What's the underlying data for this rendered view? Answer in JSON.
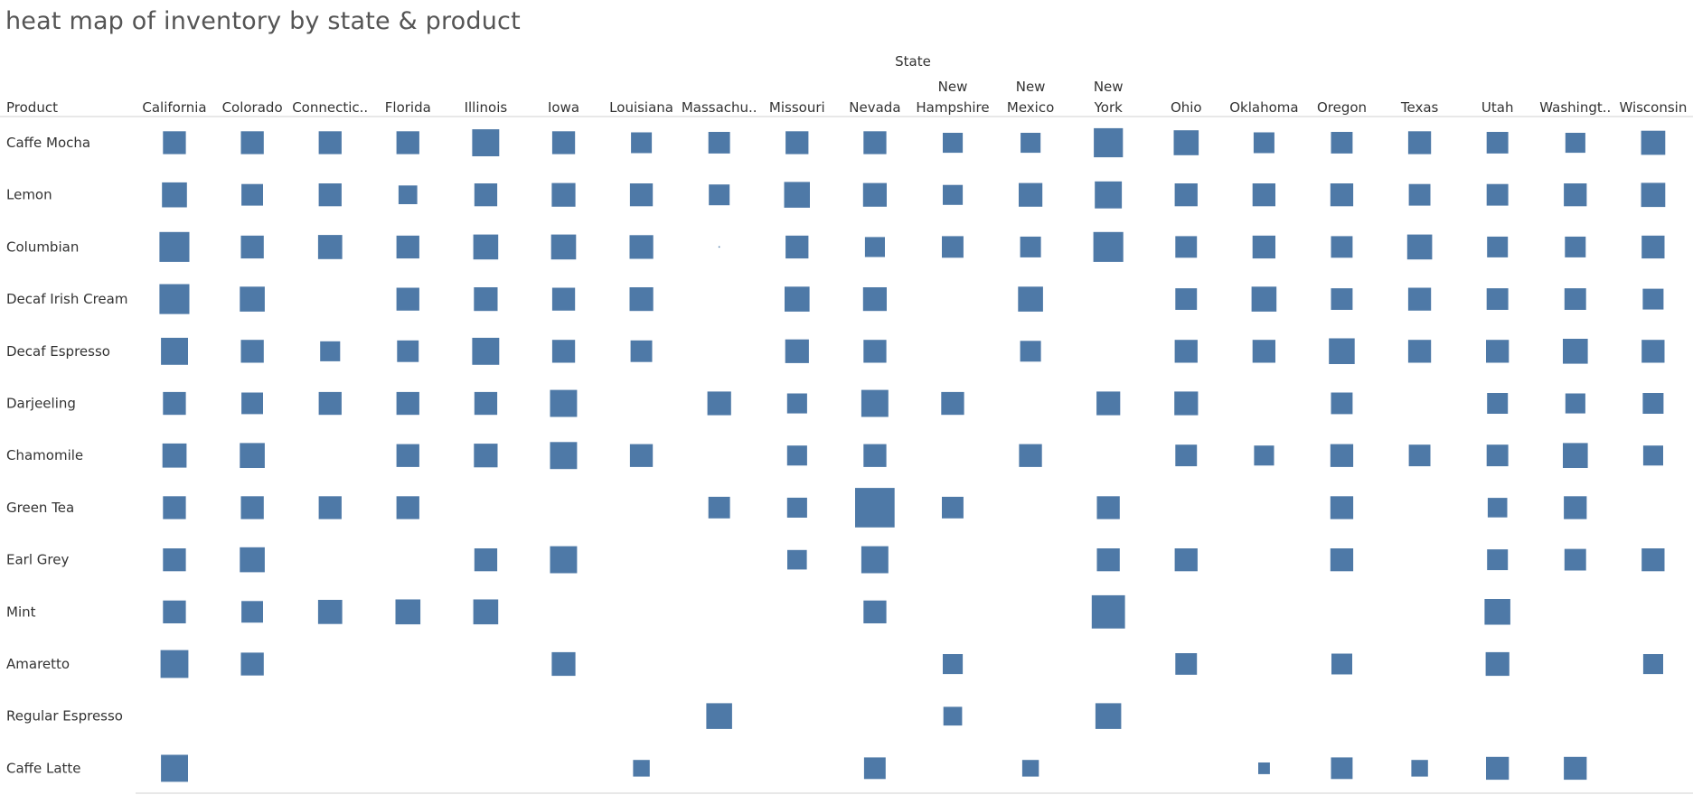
{
  "chart_data": {
    "type": "heatmap",
    "title": "heat map of inventory by state & product",
    "column_dimension": "State",
    "row_dimension": "Product",
    "states": [
      "California",
      "Colorado",
      "Connectic..",
      "Florida",
      "Illinois",
      "Iowa",
      "Louisiana",
      "Massachu..",
      "Missouri",
      "Nevada",
      "New Hampshire",
      "New Mexico",
      "New York",
      "Ohio",
      "Oklahoma",
      "Oregon",
      "Texas",
      "Utah",
      "Washingt..",
      "Wisconsin"
    ],
    "products": [
      "Caffe Mocha",
      "Lemon",
      "Columbian",
      "Decaf Irish Cream",
      "Decaf Espresso",
      "Darjeeling",
      "Chamomile",
      "Green Tea",
      "Earl Grey",
      "Mint",
      "Amaretto",
      "Regular Espresso",
      "Caffe Latte"
    ],
    "size_encoding": "relative inventory (square side, 0-1 scale)",
    "values": [
      [
        0.55,
        0.55,
        0.55,
        0.55,
        0.65,
        0.55,
        0.5,
        0.52,
        0.55,
        0.55,
        0.48,
        0.48,
        0.7,
        0.6,
        0.5,
        0.52,
        0.55,
        0.52,
        0.48,
        0.58
      ],
      [
        0.6,
        0.52,
        0.55,
        0.45,
        0.55,
        0.57,
        0.55,
        0.5,
        0.62,
        0.57,
        0.48,
        0.57,
        0.65,
        0.55,
        0.55,
        0.55,
        0.52,
        0.52,
        0.55,
        0.58
      ],
      [
        0.72,
        0.55,
        0.58,
        0.55,
        0.6,
        0.6,
        0.57,
        0.03,
        0.55,
        0.48,
        0.52,
        0.5,
        0.72,
        0.52,
        0.55,
        0.52,
        0.6,
        0.5,
        0.5,
        0.55
      ],
      [
        0.72,
        0.6,
        null,
        0.55,
        0.57,
        0.55,
        0.57,
        null,
        0.6,
        0.57,
        null,
        0.6,
        null,
        0.52,
        0.6,
        0.52,
        0.55,
        0.52,
        0.52,
        0.5
      ],
      [
        0.65,
        0.55,
        0.48,
        0.52,
        0.65,
        0.55,
        0.52,
        null,
        0.57,
        0.55,
        null,
        0.5,
        null,
        0.55,
        0.55,
        0.62,
        0.55,
        0.55,
        0.6,
        0.55
      ],
      [
        0.55,
        0.52,
        0.55,
        0.55,
        0.55,
        0.65,
        null,
        0.57,
        0.48,
        0.65,
        0.55,
        null,
        0.57,
        0.57,
        null,
        0.52,
        null,
        0.5,
        0.48,
        0.5
      ],
      [
        0.58,
        0.6,
        null,
        0.55,
        0.57,
        0.65,
        0.55,
        null,
        0.48,
        0.55,
        null,
        0.55,
        null,
        0.52,
        0.48,
        0.55,
        0.52,
        0.52,
        0.6,
        0.48
      ],
      [
        0.55,
        0.55,
        0.55,
        0.55,
        null,
        null,
        null,
        0.52,
        0.48,
        0.95,
        0.52,
        null,
        0.55,
        null,
        null,
        0.55,
        null,
        0.47,
        0.55,
        null
      ],
      [
        0.55,
        0.6,
        null,
        null,
        0.55,
        0.65,
        null,
        null,
        0.47,
        0.65,
        null,
        null,
        0.55,
        0.55,
        null,
        0.55,
        null,
        0.5,
        0.52,
        0.55
      ],
      [
        0.55,
        0.52,
        0.58,
        0.6,
        0.6,
        null,
        null,
        null,
        null,
        0.55,
        null,
        null,
        0.8,
        null,
        null,
        null,
        null,
        0.62,
        null,
        null
      ],
      [
        0.67,
        0.55,
        null,
        null,
        null,
        0.57,
        null,
        null,
        null,
        null,
        0.48,
        null,
        null,
        0.52,
        null,
        0.5,
        null,
        0.57,
        null,
        0.48
      ],
      [
        null,
        null,
        null,
        null,
        null,
        null,
        null,
        0.62,
        null,
        null,
        0.45,
        null,
        0.62,
        null,
        null,
        null,
        null,
        null,
        null,
        null
      ],
      [
        0.65,
        null,
        null,
        null,
        null,
        null,
        0.4,
        null,
        null,
        0.52,
        null,
        0.4,
        null,
        null,
        0.28,
        0.52,
        0.4,
        0.55,
        0.55,
        null
      ]
    ],
    "mark_color": "#4e79a7",
    "legend": "none",
    "grid": false
  }
}
